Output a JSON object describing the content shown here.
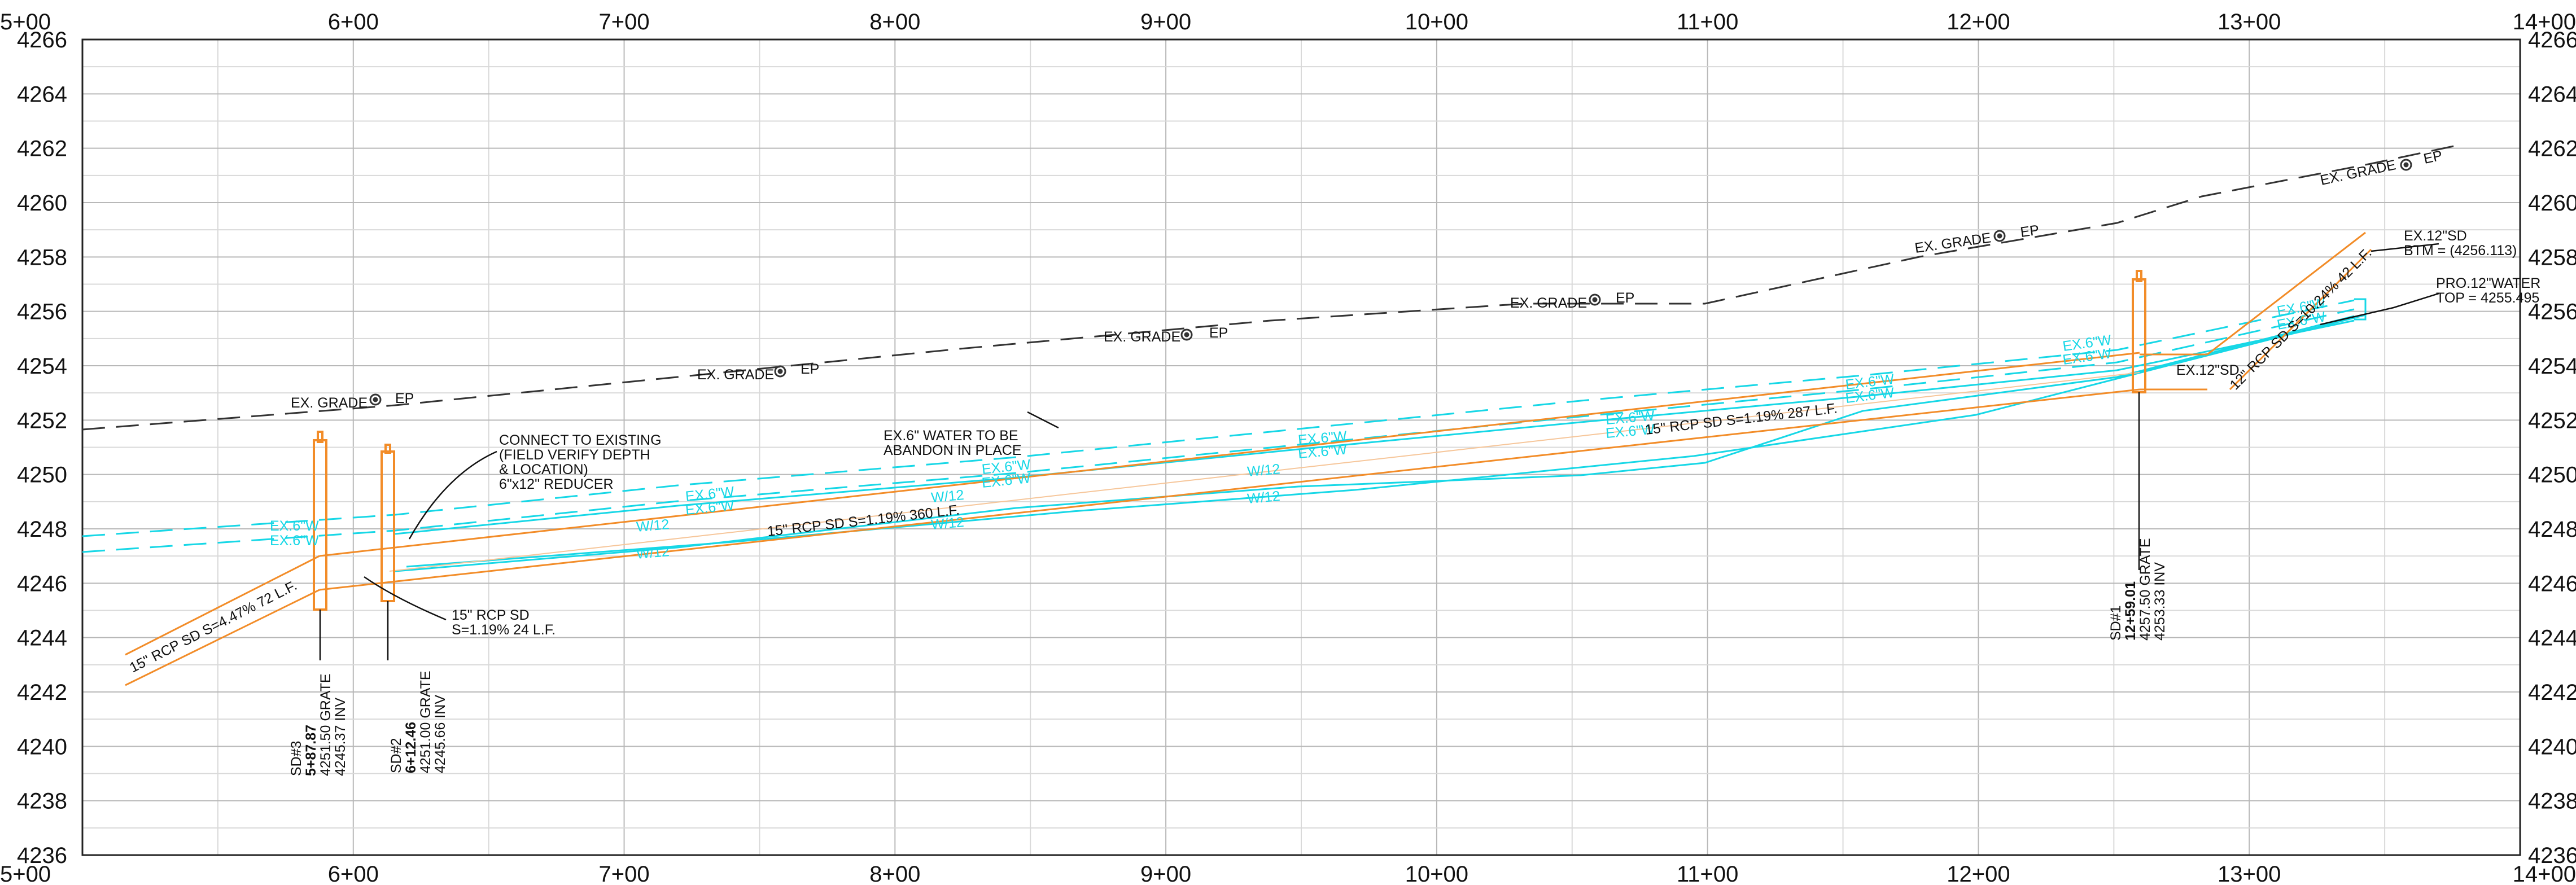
{
  "axes": {
    "stations": [
      "5+00",
      "6+00",
      "7+00",
      "8+00",
      "9+00",
      "10+00",
      "11+00",
      "12+00",
      "13+00",
      "14+00"
    ],
    "elevations": [
      "4266",
      "4264",
      "4262",
      "4260",
      "4258",
      "4256",
      "4254",
      "4252",
      "4250",
      "4248",
      "4246",
      "4244",
      "4242",
      "4240",
      "4238",
      "4236"
    ]
  },
  "colors": {
    "storm_drain": "#f28c28",
    "water": "#16d7e6",
    "grade": "#333333",
    "text": "#111111"
  },
  "labels": {
    "ex_grade": "EX. GRADE",
    "ep": "EP",
    "ex6w": "EX.6\"W",
    "w12": "W/12",
    "pipe_sd3_up": "15\" RCP SD S=4.47% 72 L.F.",
    "pipe_main_1": "15\" RCP SD S=1.19% 360 L.F.",
    "pipe_main_2": "15\" RCP SD S=1.19% 287 L.F.",
    "pipe_short_1": "15\" RCP SD",
    "pipe_short_2": "S=1.19% 24 L.F.",
    "pipe_up": "12\" RCP SD S=10.24% 42 L.F.",
    "ex12sd": "EX.12\"SD",
    "connect": [
      "CONNECT TO EXISTING",
      "(FIELD VERIFY DEPTH",
      "& LOCATION)",
      "6\"x12\" REDUCER"
    ],
    "abandon": [
      "EX.6\" WATER TO BE",
      "ABANDON IN PLACE"
    ],
    "ex12_btm": [
      "EX.12\"SD",
      "BTM = (4256.113)"
    ],
    "pro12_water": [
      "PRO.12\"WATER",
      "TOP = 4255.495"
    ]
  },
  "structures": [
    {
      "name": "SD#3",
      "station": "5+87.87",
      "grate": "4251.50 GRATE",
      "inv": "4245.37 INV"
    },
    {
      "name": "SD#2",
      "station": "6+12.46",
      "grate": "4251.00 GRATE",
      "inv": "4245.66 INV"
    },
    {
      "name": "SD#1",
      "station": "12+59.01",
      "grate": "4257.50 GRATE",
      "inv": "4253.33 INV"
    }
  ]
}
